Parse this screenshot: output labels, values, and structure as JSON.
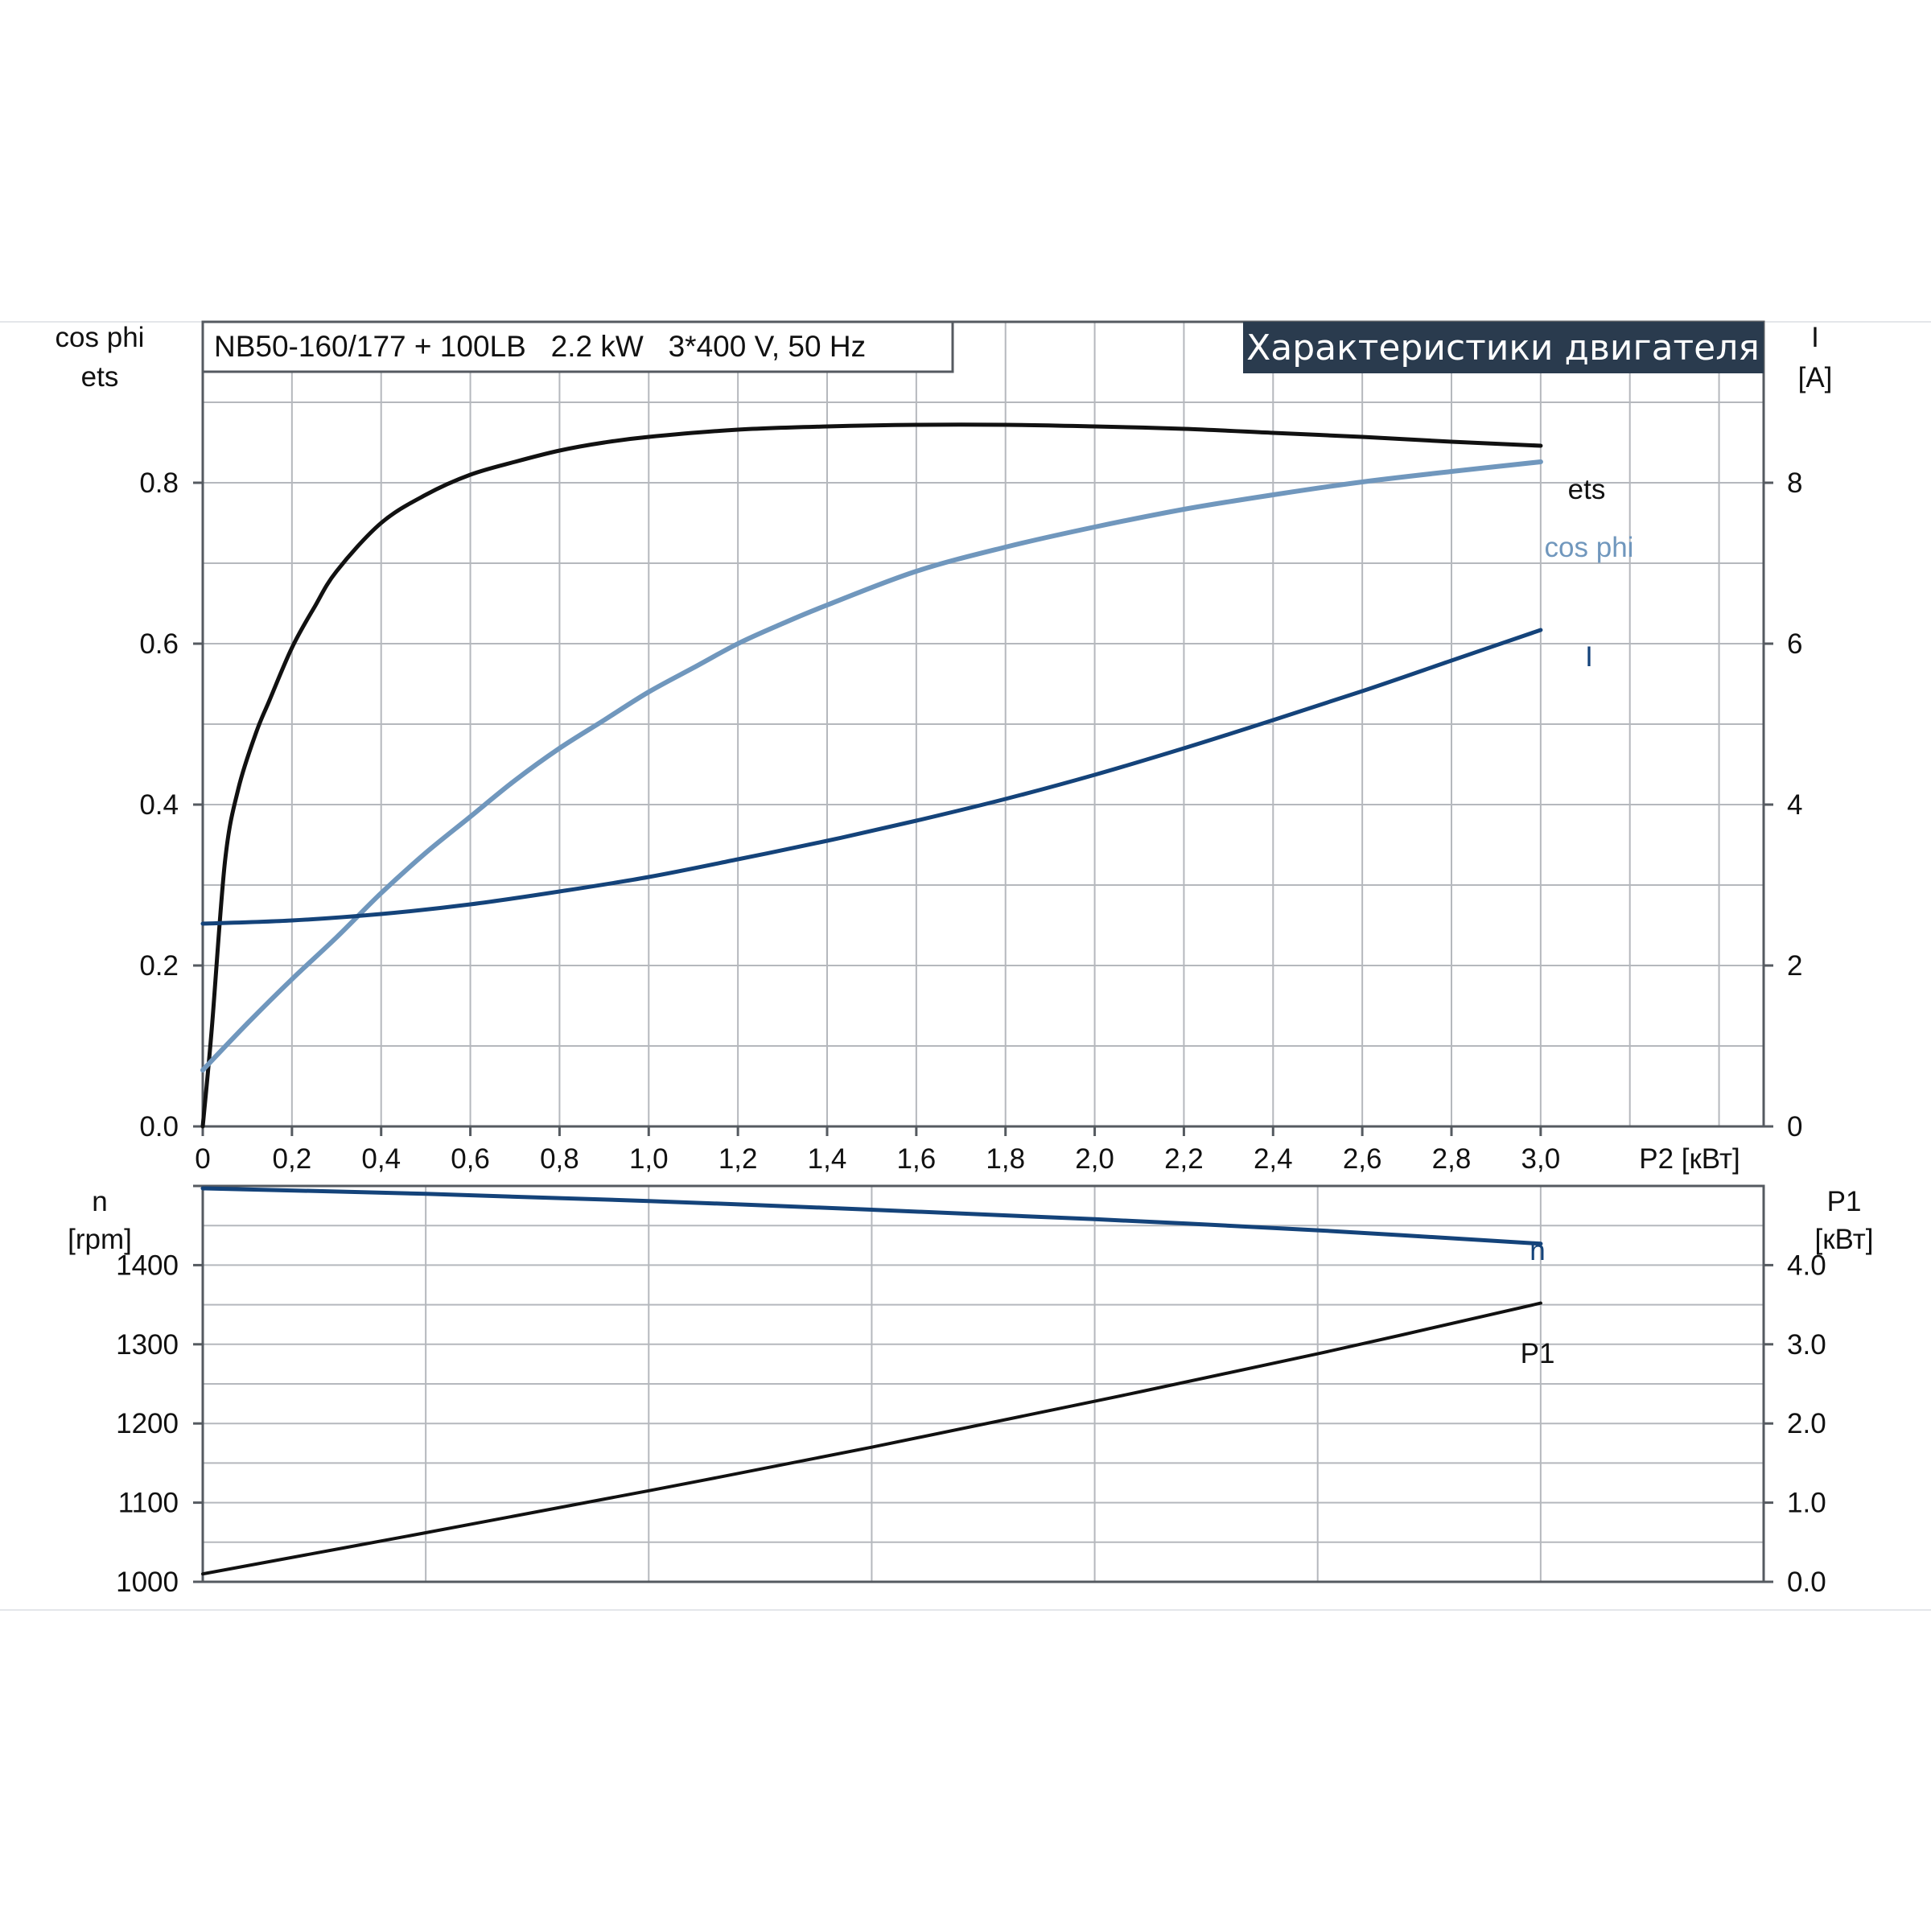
{
  "model_label": "NB50-160/177 + 100LB   2.2 kW   3*400 V, 50 Hz",
  "banner_title": "Характеристики двигателя",
  "colors": {
    "ets": "#111111",
    "cos_phi": "#7097bd",
    "current": "#14437a",
    "speed": "#14437a",
    "p1": "#111111",
    "banner_bg": "#2a3b4e",
    "grid": "#b5b8bd",
    "frame": "#555a60"
  },
  "chart_data": [
    {
      "type": "line",
      "panel": "motor characteristics",
      "grid": true,
      "x": {
        "label": "P2 [кВт]",
        "range": [
          0,
          3.5
        ],
        "ticks": [
          0,
          0.2,
          0.4,
          0.6,
          0.8,
          1.0,
          1.2,
          1.4,
          1.6,
          1.8,
          2.0,
          2.2,
          2.4,
          2.6,
          2.8,
          3.0
        ],
        "tick_labels": [
          "0",
          "0,2",
          "0,4",
          "0,6",
          "0,8",
          "1,0",
          "1,2",
          "1,4",
          "1,6",
          "1,8",
          "2,0",
          "2,2",
          "2,4",
          "2,6",
          "2,8",
          "3,0"
        ]
      },
      "y_left": {
        "label_lines": [
          "cos phi",
          "ets"
        ],
        "range": [
          0,
          1.0
        ],
        "ticks": [
          0.0,
          0.2,
          0.4,
          0.6,
          0.8
        ],
        "tick_labels": [
          "0.0",
          "0.2",
          "0.4",
          "0.6",
          "0.8"
        ]
      },
      "y_right": {
        "label_lines": [
          "I",
          "[A]"
        ],
        "range": [
          0,
          10
        ],
        "ticks": [
          0,
          2,
          4,
          6,
          8
        ],
        "tick_labels": [
          "0",
          "2",
          "4",
          "6",
          "8"
        ]
      },
      "series": [
        {
          "name": "ets",
          "axis": "left",
          "color_key": "ets",
          "stroke": 5,
          "x": [
            0.0,
            0.02,
            0.05,
            0.08,
            0.12,
            0.15,
            0.2,
            0.25,
            0.3,
            0.4,
            0.5,
            0.6,
            0.7,
            0.8,
            0.9,
            1.0,
            1.2,
            1.4,
            1.6,
            1.8,
            2.0,
            2.2,
            2.4,
            2.6,
            2.8,
            3.0
          ],
          "y": [
            0.0,
            0.12,
            0.33,
            0.42,
            0.49,
            0.53,
            0.595,
            0.645,
            0.69,
            0.75,
            0.785,
            0.81,
            0.826,
            0.84,
            0.85,
            0.857,
            0.866,
            0.87,
            0.872,
            0.872,
            0.87,
            0.867,
            0.862,
            0.857,
            0.851,
            0.846
          ]
        },
        {
          "name": "cos phi",
          "axis": "left",
          "color_key": "cos_phi",
          "stroke": 6,
          "x": [
            0.0,
            0.1,
            0.2,
            0.3,
            0.4,
            0.5,
            0.6,
            0.7,
            0.8,
            0.9,
            1.0,
            1.1,
            1.2,
            1.3,
            1.4,
            1.6,
            1.8,
            2.0,
            2.2,
            2.4,
            2.6,
            2.8,
            3.0
          ],
          "y": [
            0.07,
            0.128,
            0.183,
            0.235,
            0.29,
            0.34,
            0.385,
            0.43,
            0.47,
            0.505,
            0.54,
            0.57,
            0.6,
            0.625,
            0.648,
            0.69,
            0.72,
            0.745,
            0.767,
            0.785,
            0.801,
            0.814,
            0.826
          ]
        },
        {
          "name": "I",
          "axis": "right",
          "color_key": "current",
          "stroke": 5,
          "x": [
            0.0,
            0.2,
            0.4,
            0.6,
            0.8,
            1.0,
            1.2,
            1.4,
            1.6,
            1.8,
            2.0,
            2.2,
            2.4,
            2.6,
            2.8,
            3.0
          ],
          "y": [
            2.52,
            2.56,
            2.64,
            2.76,
            2.92,
            3.1,
            3.32,
            3.55,
            3.8,
            4.07,
            4.37,
            4.7,
            5.05,
            5.41,
            5.79,
            6.17
          ]
        }
      ]
    },
    {
      "type": "line",
      "panel": "speed and input power",
      "grid": true,
      "x": {
        "range": [
          0,
          3.5
        ]
      },
      "y_left": {
        "label_lines": [
          "n",
          "[rpm]"
        ],
        "range": [
          1000,
          1500
        ],
        "ticks": [
          1000,
          1100,
          1200,
          1300,
          1400
        ],
        "tick_labels": [
          "1000",
          "1100",
          "1200",
          "1300",
          "1400"
        ]
      },
      "y_right": {
        "label_lines": [
          "P1",
          "[кВт]"
        ],
        "range": [
          0,
          5
        ],
        "ticks": [
          0,
          1,
          2,
          3,
          4
        ],
        "tick_labels": [
          "0.0",
          "1.0",
          "2.0",
          "3.0",
          "4.0"
        ]
      },
      "series": [
        {
          "name": "n",
          "axis": "left",
          "color_key": "speed",
          "stroke": 5,
          "x": [
            0.0,
            0.5,
            1.0,
            1.5,
            2.0,
            2.5,
            3.0
          ],
          "y": [
            1497,
            1490,
            1481,
            1470,
            1458,
            1444,
            1427
          ]
        },
        {
          "name": "P1",
          "axis": "right",
          "color_key": "p1",
          "stroke": 4,
          "x": [
            0.0,
            0.5,
            1.0,
            1.5,
            2.0,
            2.5,
            3.0
          ],
          "y": [
            0.1,
            0.62,
            1.15,
            1.7,
            2.28,
            2.88,
            3.52
          ]
        }
      ]
    }
  ]
}
